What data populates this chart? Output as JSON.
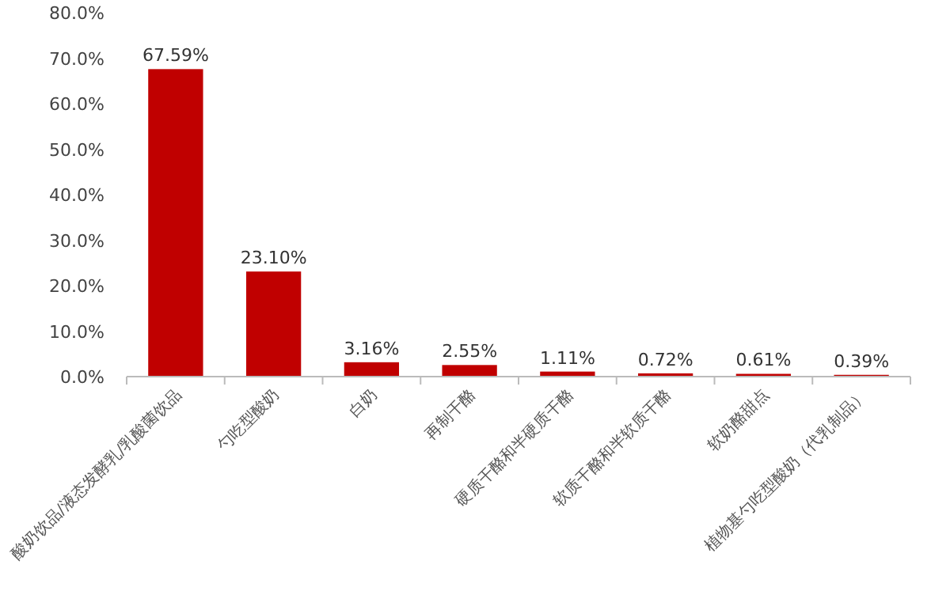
{
  "chart_data": {
    "type": "bar",
    "categories": [
      "酸奶饮品/液态发酵乳/乳酸菌饮品",
      "勺吃型酸奶",
      "白奶",
      "再制干酪",
      "硬质干酪和半硬质干酪",
      "软质干酪和半软质干酪",
      "软奶酪甜点",
      "植物基勺吃型酸奶（代乳制品）"
    ],
    "values": [
      67.59,
      23.1,
      3.16,
      2.55,
      1.11,
      0.72,
      0.61,
      0.39
    ],
    "value_labels": [
      "67.59%",
      "23.10%",
      "3.16%",
      "2.55%",
      "1.11%",
      "0.72%",
      "0.61%",
      "0.39%"
    ],
    "color": "#c00000",
    "ylim": [
      0,
      80
    ],
    "yticks": [
      {
        "value": 0,
        "label": "0.0%"
      },
      {
        "value": 10,
        "label": "10.0%"
      },
      {
        "value": 20,
        "label": "20.0%"
      },
      {
        "value": 30,
        "label": "30.0%"
      },
      {
        "value": 40,
        "label": "40.0%"
      },
      {
        "value": 50,
        "label": "50.0%"
      },
      {
        "value": 60,
        "label": "60.0%"
      },
      {
        "value": 70,
        "label": "70.0%"
      },
      {
        "value": 80,
        "label": "80.0%"
      }
    ],
    "grid": false
  }
}
